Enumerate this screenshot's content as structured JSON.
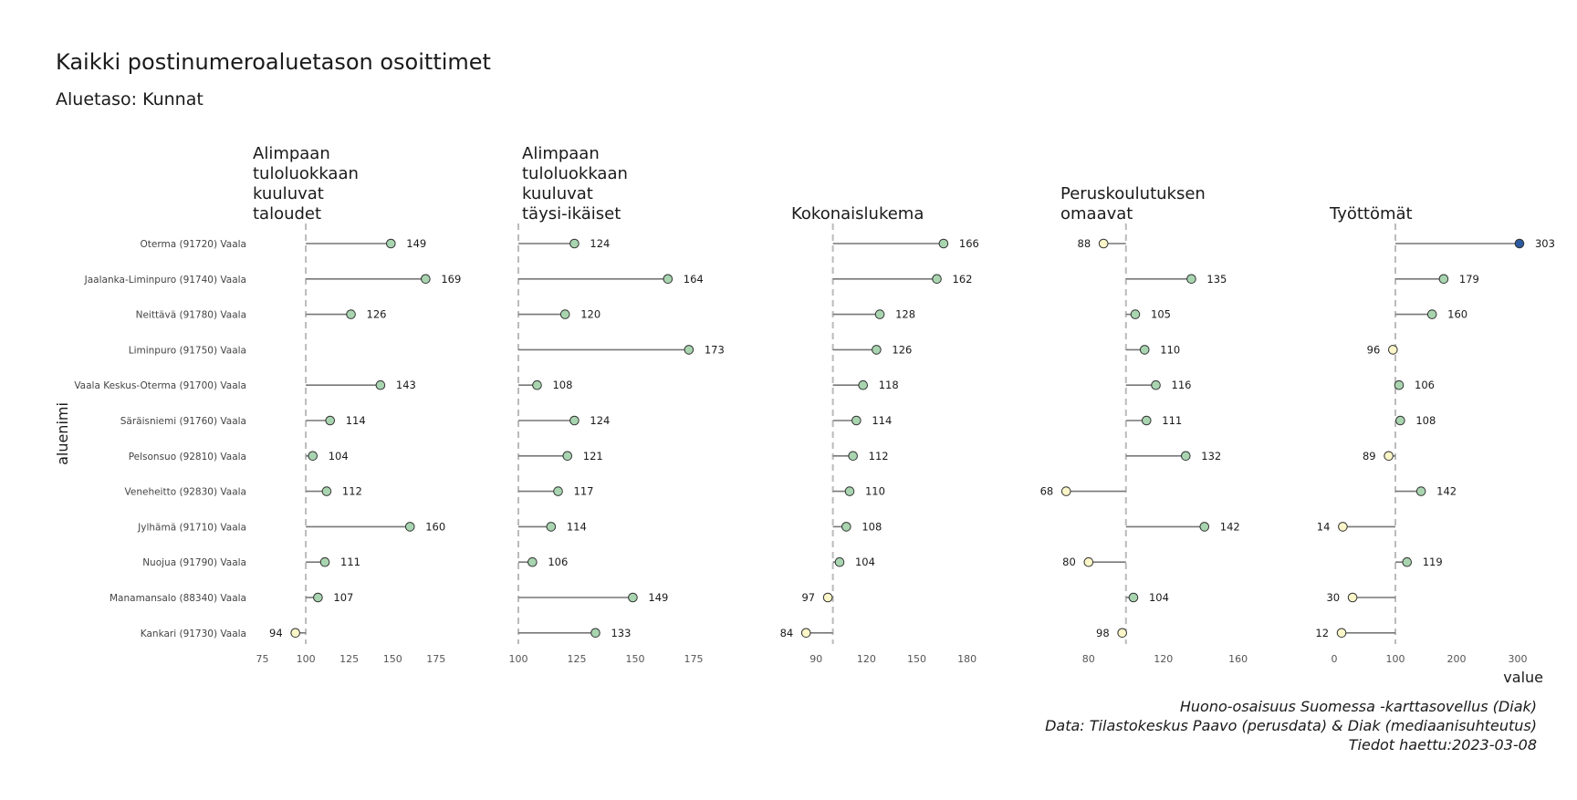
{
  "title": "Kaikki postinumeroaluetason osoittimet",
  "subtitle": "Aluetaso: Kunnat",
  "caption": {
    "line1": "Huono-osaisuus Suomessa -karttasovellus (Diak)",
    "line2": "Data: Tilastokeskus Paavo (perusdata) & Diak (mediaanisuhteutus)",
    "line3": "Tiedot haettu:2023-03-08"
  },
  "colors": {
    "above": "#a8d5b0",
    "below": "#fbf6c8",
    "max": "#2b5aa0",
    "stroke": "#333333",
    "segment": "#777777",
    "reference": "#bbbbbb"
  },
  "chart_data": {
    "type": "lollipop",
    "ylabel": "aluenimi",
    "xlabel": "value",
    "reference_value": 100,
    "categories": [
      "Oterma (91720) Vaala",
      "Jaalanka-Liminpuro (91740) Vaala",
      "Neittävä (91780) Vaala",
      "Liminpuro (91750) Vaala",
      "Vaala Keskus-Oterma (91700) Vaala",
      "Säräisniemi (91760) Vaala",
      "Pelsonsuo (92810) Vaala",
      "Veneheitto (92830) Vaala",
      "Jylhämä (91710) Vaala",
      "Nuojua (91790) Vaala",
      "Manamansalo (88340) Vaala",
      "Kankari (91730) Vaala"
    ],
    "facets": [
      {
        "title_lines": [
          "Alimpaan",
          "tuloluokkaan",
          "kuuluvat",
          "taloudet"
        ],
        "xlim": [
          70,
          183
        ],
        "ticks": [
          75,
          100,
          125,
          150,
          175
        ],
        "values": [
          149,
          169,
          126,
          null,
          143,
          114,
          104,
          112,
          160,
          111,
          107,
          94
        ]
      },
      {
        "title_lines": [
          "Alimpaan",
          "tuloluokkaan",
          "kuuluvat",
          "täysi-ikäiset"
        ],
        "xlim": [
          100,
          184
        ],
        "ticks": [
          100,
          125,
          150,
          175
        ],
        "values": [
          124,
          164,
          120,
          173,
          108,
          124,
          121,
          117,
          114,
          106,
          149,
          133
        ]
      },
      {
        "title_lines": [
          "Kokonaislukema"
        ],
        "xlim": [
          73,
          190
        ],
        "ticks": [
          90,
          120,
          150,
          180
        ],
        "values": [
          166,
          162,
          128,
          126,
          118,
          114,
          112,
          110,
          108,
          104,
          97,
          84
        ]
      },
      {
        "title_lines": [
          "Peruskoulutuksen",
          "omaavat"
        ],
        "xlim": [
          63,
          168
        ],
        "ticks": [
          80,
          120,
          160
        ],
        "values": [
          88,
          135,
          105,
          110,
          116,
          111,
          132,
          68,
          142,
          80,
          104,
          98
        ]
      },
      {
        "title_lines": [
          "Työttömät"
        ],
        "xlim": [
          -6,
          315
        ],
        "ticks": [
          0,
          100,
          200,
          300
        ],
        "values": [
          303,
          179,
          160,
          96,
          106,
          108,
          89,
          142,
          14,
          119,
          30,
          12
        ]
      }
    ]
  }
}
